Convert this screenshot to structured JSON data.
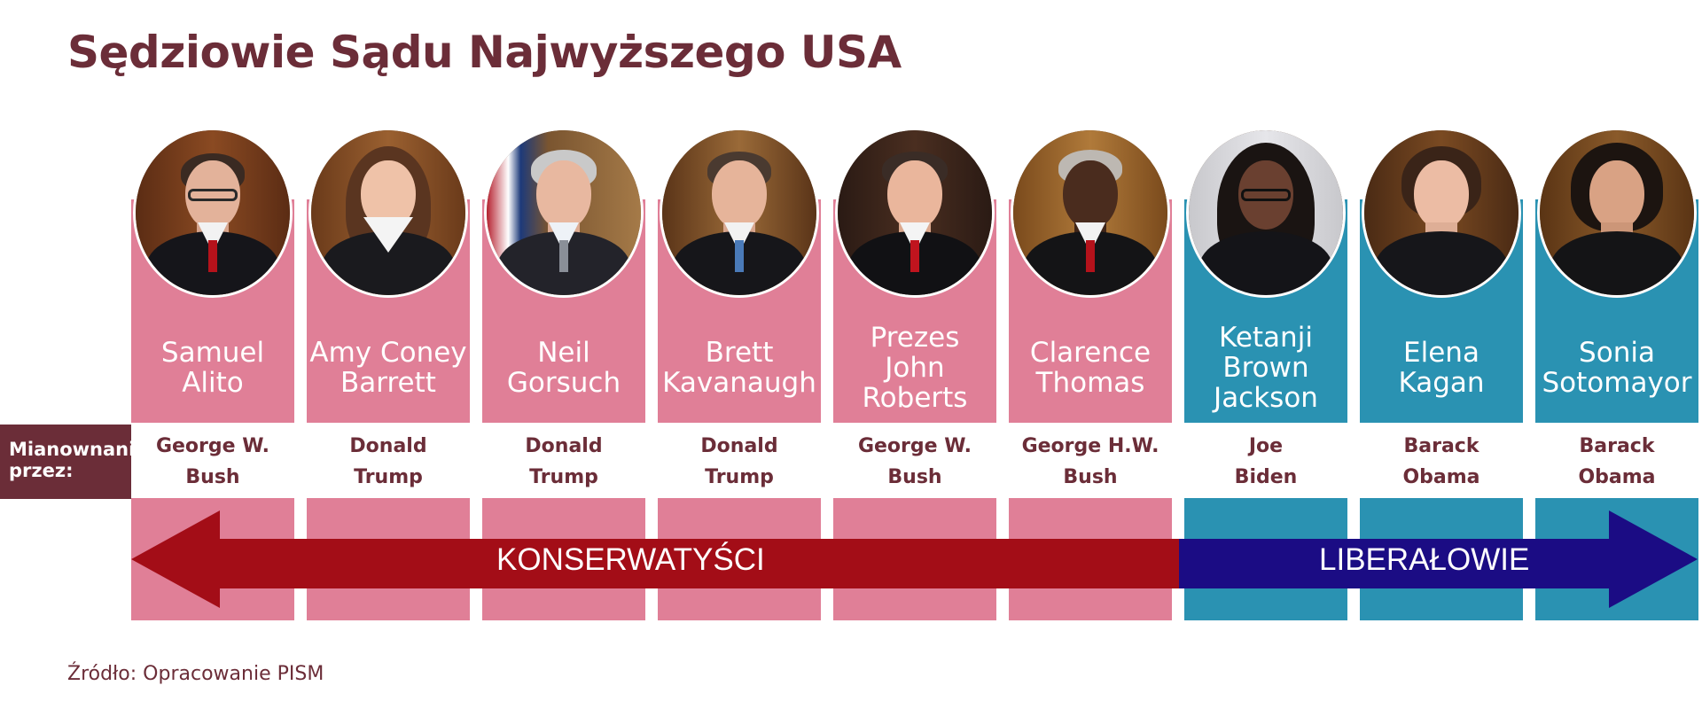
{
  "title": "Sędziowie Sądu Najwyższego USA",
  "appointed_by_label": "Mianownani\nprzez:",
  "source": "Źródło: Opracowanie PISM",
  "colors": {
    "conservative_bg": "#e07f97",
    "liberal_bg": "#2a92b2",
    "conservative_arrow": "#a30d17",
    "liberal_arrow": "#1b0c84",
    "text_dark": "#6b2d38"
  },
  "arrow": {
    "conservative_label": "KONSERWATYŚCI",
    "liberal_label": "LIBERAŁOWIE"
  },
  "justices": [
    {
      "name": "Samuel\nAlito",
      "appointed_by": "George W.\nBush",
      "group": "conservative",
      "photo": "justice-portrait"
    },
    {
      "name": "Amy Coney\nBarrett",
      "appointed_by": "Donald\nTrump",
      "group": "conservative",
      "photo": "justice-portrait"
    },
    {
      "name": "Neil\nGorsuch",
      "appointed_by": "Donald\nTrump",
      "group": "conservative",
      "photo": "justice-portrait"
    },
    {
      "name": "Brett\nKavanaugh",
      "appointed_by": "Donald\nTrump",
      "group": "conservative",
      "photo": "justice-portrait"
    },
    {
      "name": "Prezes\nJohn\nRoberts",
      "appointed_by": "George W.\nBush",
      "group": "conservative",
      "photo": "justice-portrait"
    },
    {
      "name": "Clarence\nThomas",
      "appointed_by": "George H.W.\nBush",
      "group": "conservative",
      "photo": "justice-portrait"
    },
    {
      "name": "Ketanji\nBrown\nJackson",
      "appointed_by": "Joe\nBiden",
      "group": "liberal",
      "photo": "justice-portrait"
    },
    {
      "name": "Elena\nKagan",
      "appointed_by": "Barack\nObama",
      "group": "liberal",
      "photo": "justice-portrait"
    },
    {
      "name": "Sonia\nSotomayor",
      "appointed_by": "Barack\nObama",
      "group": "liberal",
      "photo": "justice-portrait"
    }
  ]
}
